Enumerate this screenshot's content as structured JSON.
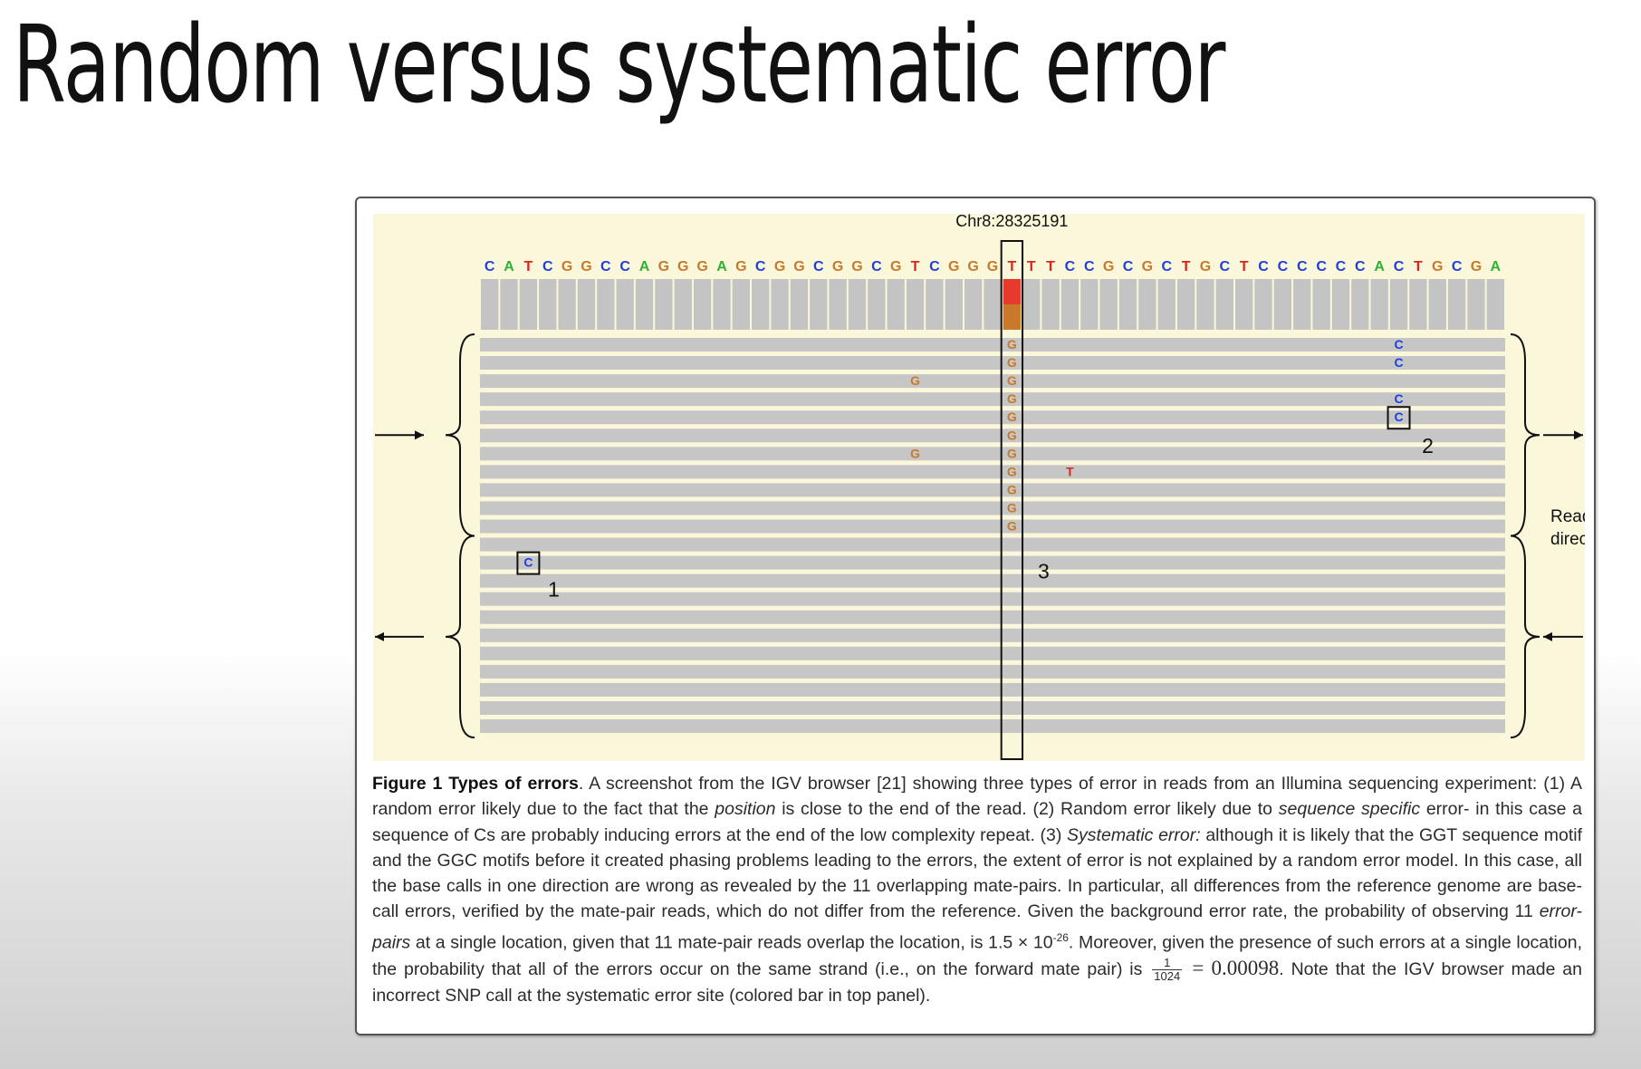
{
  "slide": {
    "title": "Random versus systematic error"
  },
  "figure": {
    "locus_label": "Chr8:28325191",
    "reference_sequence": "CATCGGCCAGGGAGCGGCGGCGTCGGGTTTCCGCGCTGCTCCCCCCACTGCGA",
    "colors": {
      "A": "#33b033",
      "C": "#1f3ee0",
      "G": "#c9792a",
      "T": "#d8261f",
      "read_fill": "#c6c6c6",
      "coverage_fill": "#c4c4c4",
      "snp_red": "#e8392e",
      "snp_orange": "#c9792a",
      "panel_bg": "#fbf7da"
    },
    "snp_call": {
      "position_index": 27,
      "alleles": [
        "T",
        "G"
      ]
    },
    "forward_reads": 11,
    "reverse_reads": 11,
    "mismatches": [
      {
        "row": 0,
        "col": 27,
        "base": "G"
      },
      {
        "row": 1,
        "col": 27,
        "base": "G"
      },
      {
        "row": 2,
        "col": 27,
        "base": "G"
      },
      {
        "row": 3,
        "col": 27,
        "base": "G"
      },
      {
        "row": 4,
        "col": 27,
        "base": "G"
      },
      {
        "row": 5,
        "col": 27,
        "base": "G"
      },
      {
        "row": 6,
        "col": 27,
        "base": "G"
      },
      {
        "row": 7,
        "col": 27,
        "base": "G"
      },
      {
        "row": 8,
        "col": 27,
        "base": "G"
      },
      {
        "row": 9,
        "col": 27,
        "base": "G"
      },
      {
        "row": 10,
        "col": 27,
        "base": "G"
      },
      {
        "row": 2,
        "col": 22,
        "base": "G"
      },
      {
        "row": 6,
        "col": 22,
        "base": "G"
      },
      {
        "row": 7,
        "col": 30,
        "base": "T"
      },
      {
        "row": 0,
        "col": 47,
        "base": "C"
      },
      {
        "row": 1,
        "col": 47,
        "base": "C"
      },
      {
        "row": 3,
        "col": 47,
        "base": "C"
      },
      {
        "row": 4,
        "col": 47,
        "base": "C",
        "boxed": true
      },
      {
        "row": 12,
        "col": 2,
        "base": "C",
        "boxed": true
      }
    ],
    "markers": [
      {
        "label": "1",
        "near": "random error at read end"
      },
      {
        "label": "2",
        "near": "error after C homopolymer"
      },
      {
        "label": "3",
        "near": "systematic error column"
      }
    ],
    "read_directions_label": [
      "Read",
      "directions"
    ]
  },
  "caption": {
    "title": "Figure 1 Types of errors",
    "p1": ". A screenshot from the IGV browser [21] showing three types of error in reads from an Illumina sequencing experiment: (1) A random error likely due to the fact that the ",
    "p1i": "position",
    "p2": " is close to the end of the read. (2) Random error likely due to ",
    "p2i": "sequence specific",
    "p3": " error- in this case a sequence of Cs are probably inducing errors at the end of the low complexity repeat. (3) ",
    "p3i": "Systematic error:",
    "p4": " although it is likely that the GGT sequence motif and the GGC motifs before it created phasing problems leading to the errors, the extent of error is not explained by a random error model. In this case, all the base calls in one direction are wrong as revealed by the 11 overlapping mate-pairs. In particular, all differences from the reference genome are base-call errors, verified by the mate-pair reads, which do not differ from the reference. Given the background error rate, the probability of observing 11 ",
    "p4i": "error-pairs",
    "p5": " at a single location, given that 11 mate-pair reads overlap the location, is 1.5 × 10",
    "p5sup": "-26",
    "p6": ". Moreover, given the presence of such errors at a single location, the probability that all of the errors occur on the same strand (i.e., on the forward mate pair) is ",
    "frac_num": "1",
    "frac_den": "1024",
    "frac_val": " = 0.00098",
    "p7": ". Note that the IGV browser made an incorrect SNP call at the systematic error site (colored bar in top panel)."
  }
}
